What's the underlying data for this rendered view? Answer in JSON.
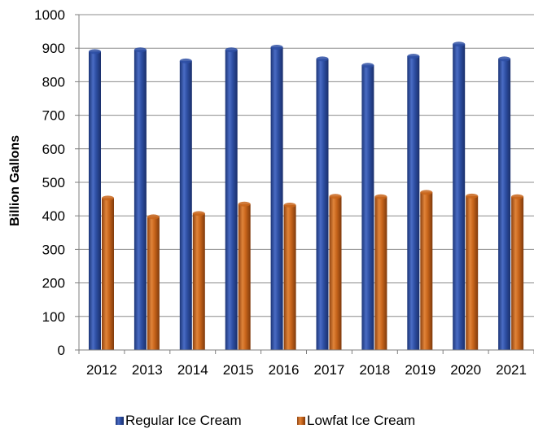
{
  "chart_data": {
    "type": "bar",
    "title": "",
    "xlabel": "",
    "ylabel": "Billion Gallons",
    "ylim": [
      0,
      1000
    ],
    "yticks": [
      0,
      100,
      200,
      300,
      400,
      500,
      600,
      700,
      800,
      900,
      1000
    ],
    "categories": [
      "2012",
      "2013",
      "2014",
      "2015",
      "2016",
      "2017",
      "2018",
      "2019",
      "2020",
      "2021"
    ],
    "series": [
      {
        "name": "Regular Ice Cream",
        "color": "#2E4FA3",
        "values": [
          890,
          895,
          862,
          895,
          903,
          868,
          849,
          876,
          912,
          868
        ]
      },
      {
        "name": "Lowfat Ice Cream",
        "color": "#C8651B",
        "values": [
          453,
          397,
          407,
          435,
          432,
          458,
          457,
          470,
          459,
          457
        ]
      }
    ],
    "grid": true,
    "legend_position": "bottom"
  }
}
